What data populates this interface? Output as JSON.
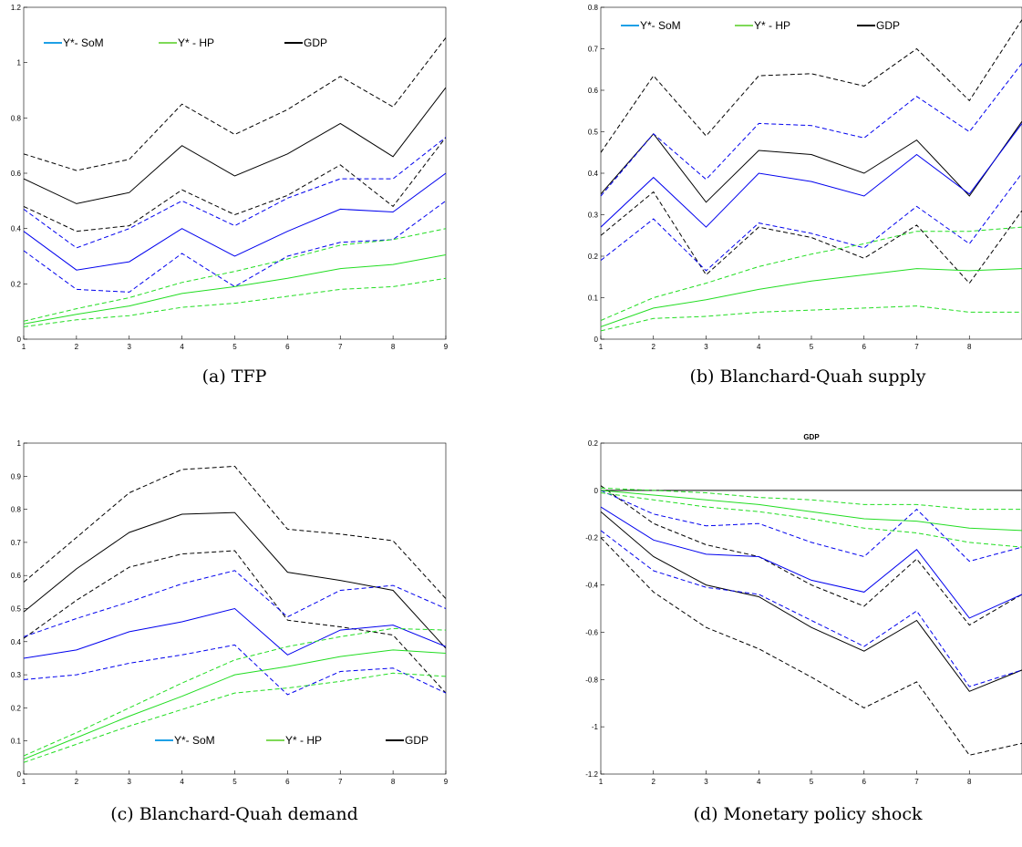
{
  "colors": {
    "black": "#000000",
    "blue": "#0000ee",
    "green": "#22dd22",
    "legend_blue": "#1ea0e6",
    "legend_green": "#7ed957"
  },
  "captions": [
    "(a)  TFP",
    "(b)  Blanchard-Quah supply",
    "(c)  Blanchard-Quah demand",
    "(d)  Monetary policy shock"
  ],
  "chart_data": [
    {
      "type": "line",
      "title": "",
      "x": [
        1,
        2,
        3,
        4,
        5,
        6,
        7,
        8,
        9
      ],
      "ylim": [
        0,
        1.2
      ],
      "yticks": [
        "0",
        "0.2",
        "0.4",
        "0.6",
        "0.8",
        "1",
        "1.2"
      ],
      "xticks": [
        "1",
        "2",
        "3",
        "4",
        "5",
        "6",
        "7",
        "8",
        "9"
      ],
      "legend": [
        "Y*- SoM",
        "Y* - HP",
        "GDP"
      ],
      "legend_position": "top-left",
      "series": [
        {
          "name": "GDP",
          "color": "black",
          "style": "solid",
          "values": [
            0.58,
            0.49,
            0.53,
            0.7,
            0.59,
            0.67,
            0.78,
            0.66,
            0.91
          ]
        },
        {
          "name": "",
          "color": "black",
          "style": "dashed",
          "values": [
            0.67,
            0.61,
            0.65,
            0.85,
            0.74,
            0.83,
            0.95,
            0.84,
            1.09
          ]
        },
        {
          "name": "",
          "color": "black",
          "style": "dashed",
          "values": [
            0.48,
            0.39,
            0.41,
            0.54,
            0.45,
            0.52,
            0.63,
            0.48,
            0.73
          ]
        },
        {
          "name": "Y*- SoM",
          "color": "blue",
          "style": "solid",
          "values": [
            0.39,
            0.25,
            0.28,
            0.4,
            0.3,
            0.39,
            0.47,
            0.46,
            0.6
          ]
        },
        {
          "name": "",
          "color": "blue",
          "style": "dashed",
          "values": [
            0.47,
            0.33,
            0.4,
            0.5,
            0.41,
            0.51,
            0.58,
            0.58,
            0.73
          ]
        },
        {
          "name": "",
          "color": "blue",
          "style": "dashed",
          "values": [
            0.32,
            0.18,
            0.17,
            0.31,
            0.19,
            0.3,
            0.35,
            0.36,
            0.5
          ]
        },
        {
          "name": "Y* - HP",
          "color": "green",
          "style": "solid",
          "values": [
            0.055,
            0.09,
            0.12,
            0.165,
            0.19,
            0.22,
            0.255,
            0.27,
            0.305
          ]
        },
        {
          "name": "",
          "color": "green",
          "style": "dashed",
          "values": [
            0.065,
            0.11,
            0.15,
            0.205,
            0.245,
            0.29,
            0.34,
            0.36,
            0.4
          ]
        },
        {
          "name": "",
          "color": "green",
          "style": "dashed",
          "values": [
            0.045,
            0.07,
            0.085,
            0.115,
            0.13,
            0.155,
            0.18,
            0.19,
            0.22
          ]
        }
      ]
    },
    {
      "type": "line",
      "title": "",
      "x": [
        1,
        2,
        3,
        4,
        5,
        6,
        7,
        8,
        9
      ],
      "ylim": [
        0,
        0.8
      ],
      "yticks": [
        "0",
        "0.1",
        "0.2",
        "0.3",
        "0.4",
        "0.5",
        "0.6",
        "0.7",
        "0.8"
      ],
      "xticks": [
        "1",
        "2",
        "3",
        "4",
        "5",
        "6",
        "7",
        "8"
      ],
      "legend": [
        "Y*- SoM",
        "Y* - HP",
        "GDP"
      ],
      "legend_position": "top-left",
      "series": [
        {
          "name": "GDP",
          "color": "black",
          "style": "solid",
          "values": [
            0.35,
            0.495,
            0.33,
            0.455,
            0.445,
            0.4,
            0.48,
            0.345,
            0.525
          ]
        },
        {
          "name": "",
          "color": "black",
          "style": "dashed",
          "values": [
            0.45,
            0.635,
            0.49,
            0.635,
            0.64,
            0.61,
            0.7,
            0.575,
            0.77
          ]
        },
        {
          "name": "",
          "color": "black",
          "style": "dashed",
          "values": [
            0.25,
            0.355,
            0.155,
            0.27,
            0.245,
            0.195,
            0.275,
            0.135,
            0.31
          ]
        },
        {
          "name": "Y*- SoM",
          "color": "blue",
          "style": "solid",
          "values": [
            0.27,
            0.39,
            0.27,
            0.4,
            0.38,
            0.345,
            0.445,
            0.35,
            0.52
          ]
        },
        {
          "name": "",
          "color": "blue",
          "style": "dashed",
          "values": [
            0.345,
            0.495,
            0.385,
            0.52,
            0.515,
            0.485,
            0.585,
            0.5,
            0.665
          ]
        },
        {
          "name": "",
          "color": "blue",
          "style": "dashed",
          "values": [
            0.19,
            0.29,
            0.165,
            0.28,
            0.255,
            0.22,
            0.32,
            0.23,
            0.4
          ]
        },
        {
          "name": "Y* - HP",
          "color": "green",
          "style": "solid",
          "values": [
            0.03,
            0.075,
            0.095,
            0.12,
            0.14,
            0.155,
            0.17,
            0.165,
            0.17
          ]
        },
        {
          "name": "",
          "color": "green",
          "style": "dashed",
          "values": [
            0.045,
            0.1,
            0.135,
            0.175,
            0.205,
            0.23,
            0.26,
            0.26,
            0.27
          ]
        },
        {
          "name": "",
          "color": "green",
          "style": "dashed",
          "values": [
            0.02,
            0.05,
            0.055,
            0.065,
            0.07,
            0.075,
            0.08,
            0.065,
            0.065
          ]
        }
      ]
    },
    {
      "type": "line",
      "title": "",
      "x": [
        1,
        2,
        3,
        4,
        5,
        6,
        7,
        8,
        9
      ],
      "ylim": [
        0,
        1
      ],
      "yticks": [
        "0",
        "0.1",
        "0.2",
        "0.3",
        "0.4",
        "0.5",
        "0.6",
        "0.7",
        "0.8",
        "0.9",
        "1"
      ],
      "xticks": [
        "1",
        "2",
        "3",
        "4",
        "5",
        "6",
        "7",
        "8",
        "9"
      ],
      "legend": [
        "Y*- SoM",
        "Y* - HP",
        "GDP"
      ],
      "legend_position": "bottom-right",
      "series": [
        {
          "name": "GDP",
          "color": "black",
          "style": "solid",
          "values": [
            0.49,
            0.62,
            0.73,
            0.785,
            0.79,
            0.61,
            0.585,
            0.555,
            0.38
          ]
        },
        {
          "name": "",
          "color": "black",
          "style": "dashed",
          "values": [
            0.58,
            0.715,
            0.85,
            0.92,
            0.93,
            0.74,
            0.725,
            0.705,
            0.53
          ]
        },
        {
          "name": "",
          "color": "black",
          "style": "dashed",
          "values": [
            0.41,
            0.525,
            0.625,
            0.665,
            0.675,
            0.465,
            0.445,
            0.42,
            0.245
          ]
        },
        {
          "name": "Y*- SoM",
          "color": "blue",
          "style": "solid",
          "values": [
            0.35,
            0.375,
            0.43,
            0.46,
            0.5,
            0.36,
            0.435,
            0.45,
            0.385
          ]
        },
        {
          "name": "",
          "color": "blue",
          "style": "dashed",
          "values": [
            0.415,
            0.47,
            0.52,
            0.575,
            0.615,
            0.475,
            0.555,
            0.57,
            0.5
          ]
        },
        {
          "name": "",
          "color": "blue",
          "style": "dashed",
          "values": [
            0.285,
            0.3,
            0.335,
            0.36,
            0.39,
            0.24,
            0.31,
            0.32,
            0.245
          ]
        },
        {
          "name": "Y* - HP",
          "color": "green",
          "style": "solid",
          "values": [
            0.045,
            0.11,
            0.175,
            0.235,
            0.3,
            0.325,
            0.355,
            0.375,
            0.365
          ]
        },
        {
          "name": "",
          "color": "green",
          "style": "dashed",
          "values": [
            0.055,
            0.125,
            0.2,
            0.275,
            0.345,
            0.385,
            0.415,
            0.44,
            0.435
          ]
        },
        {
          "name": "",
          "color": "green",
          "style": "dashed",
          "values": [
            0.035,
            0.09,
            0.145,
            0.195,
            0.245,
            0.26,
            0.28,
            0.305,
            0.295
          ]
        }
      ]
    },
    {
      "type": "line",
      "title": "GDP",
      "x": [
        1,
        2,
        3,
        4,
        5,
        6,
        7,
        8,
        9
      ],
      "ylim": [
        -1.2,
        0.2
      ],
      "yticks": [
        "-1.2",
        "-1",
        "-0.8",
        "-0.6",
        "-0.4",
        "-0.2",
        "0",
        "0.2"
      ],
      "xticks": [
        "1",
        "2",
        "3",
        "4",
        "5",
        "6",
        "7",
        "8"
      ],
      "legend": [],
      "series": [
        {
          "name": "",
          "color": "black",
          "style": "solid",
          "values": [
            0,
            0,
            0,
            0,
            0,
            0,
            0,
            0,
            0
          ]
        },
        {
          "name": "",
          "color": "black",
          "style": "solid",
          "values": [
            -0.09,
            -0.28,
            -0.4,
            -0.45,
            -0.58,
            -0.68,
            -0.55,
            -0.85,
            -0.76
          ]
        },
        {
          "name": "",
          "color": "black",
          "style": "dashed",
          "values": [
            0.02,
            -0.14,
            -0.23,
            -0.28,
            -0.4,
            -0.49,
            -0.29,
            -0.57,
            -0.44
          ]
        },
        {
          "name": "",
          "color": "black",
          "style": "dashed",
          "values": [
            -0.2,
            -0.43,
            -0.58,
            -0.67,
            -0.79,
            -0.92,
            -0.81,
            -1.12,
            -1.07
          ]
        },
        {
          "name": "",
          "color": "blue",
          "style": "solid",
          "values": [
            -0.07,
            -0.21,
            -0.27,
            -0.28,
            -0.38,
            -0.43,
            -0.25,
            -0.54,
            -0.44
          ]
        },
        {
          "name": "",
          "color": "blue",
          "style": "dashed",
          "values": [
            0,
            -0.1,
            -0.15,
            -0.14,
            -0.22,
            -0.28,
            -0.08,
            -0.3,
            -0.24
          ]
        },
        {
          "name": "",
          "color": "blue",
          "style": "dashed",
          "values": [
            -0.17,
            -0.34,
            -0.41,
            -0.44,
            -0.55,
            -0.66,
            -0.51,
            -0.83,
            -0.76
          ]
        },
        {
          "name": "",
          "color": "green",
          "style": "solid",
          "values": [
            0,
            -0.02,
            -0.04,
            -0.06,
            -0.09,
            -0.12,
            -0.13,
            -0.16,
            -0.17
          ]
        },
        {
          "name": "",
          "color": "green",
          "style": "dashed",
          "values": [
            0.01,
            0,
            -0.01,
            -0.03,
            -0.04,
            -0.06,
            -0.06,
            -0.08,
            -0.08
          ]
        },
        {
          "name": "",
          "color": "green",
          "style": "dashed",
          "values": [
            -0.01,
            -0.04,
            -0.07,
            -0.09,
            -0.12,
            -0.16,
            -0.18,
            -0.22,
            -0.24
          ]
        }
      ]
    }
  ]
}
